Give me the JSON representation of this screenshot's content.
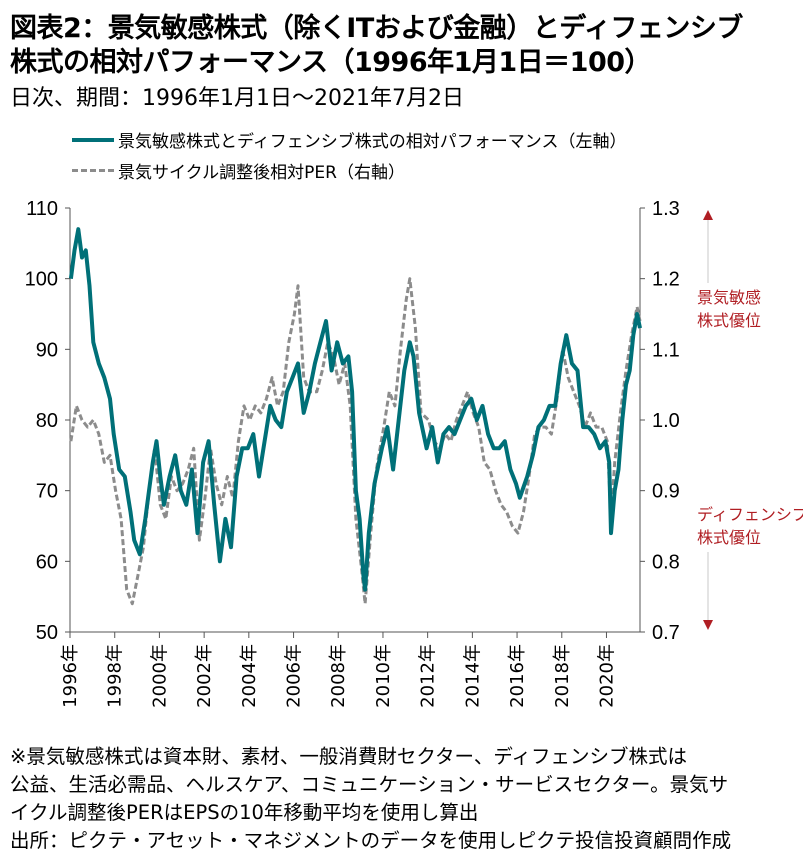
{
  "title_line1": "図表2：景気敏感株式（除くITおよび金融）とディフェンシブ",
  "title_line2": "株式の相対パフォーマンス（1996年1月1日＝100）",
  "subtitle": "日次、期間：1996年1月1日～2021年7月2日",
  "notes": [
    "※景気敏感株式は資本財、素材、一般消費財セクター、ディフェンシブ株式は",
    "公益、生活必需品、ヘルスケア、コミュニケーション・サービスセクター。景気サ",
    "イクル調整後PERはEPSの10年移動平均を使用し算出",
    "出所：ピクテ・アセット・マネジメントのデータを使用しピクテ投信投資顧問作成"
  ],
  "colors": {
    "relative": "#007078",
    "per": "#8c8c8c",
    "annotation": "#b01e23"
  },
  "chart_data": {
    "type": "line",
    "x_range": [
      "1996-01-01",
      "2021-07-02"
    ],
    "x_ticks": [
      "1996年",
      "1998年",
      "2000年",
      "2002年",
      "2004年",
      "2006年",
      "2008年",
      "2010年",
      "2012年",
      "2014年",
      "2016年",
      "2018年",
      "2020年"
    ],
    "left_axis": {
      "ylim": [
        50,
        110
      ],
      "ticks": [
        "50",
        "60",
        "70",
        "80",
        "90",
        "100",
        "110"
      ]
    },
    "right_axis": {
      "ylim": [
        0.7,
        1.3
      ],
      "ticks": [
        "0.7",
        "0.8",
        "0.9",
        "1.0",
        "1.1",
        "1.2",
        "1.3"
      ]
    },
    "annotation_top": [
      "景気敏感",
      "株式優位"
    ],
    "annotation_bottom": [
      "ディフェンシブ",
      "株式優位"
    ],
    "series": [
      {
        "name": "景気敏感株式とディフェンシブ株式の相対パフォーマンス（左軸）",
        "axis": "left",
        "style": "solid",
        "points": [
          [
            "1996-01",
            100
          ],
          [
            "1996-03",
            104
          ],
          [
            "1996-05",
            107
          ],
          [
            "1996-07",
            103
          ],
          [
            "1996-09",
            104
          ],
          [
            "1996-11",
            99
          ],
          [
            "1997-01",
            91
          ],
          [
            "1997-04",
            88
          ],
          [
            "1997-07",
            86
          ],
          [
            "1997-10",
            83
          ],
          [
            "1997-12",
            78
          ],
          [
            "1998-03",
            73
          ],
          [
            "1998-06",
            72
          ],
          [
            "1998-09",
            67
          ],
          [
            "1998-11",
            63
          ],
          [
            "1999-02",
            61
          ],
          [
            "1999-05",
            66
          ],
          [
            "1999-07",
            70
          ],
          [
            "1999-09",
            74
          ],
          [
            "1999-11",
            77
          ],
          [
            "2000-01",
            72
          ],
          [
            "2000-03",
            68
          ],
          [
            "2000-06",
            72
          ],
          [
            "2000-09",
            75
          ],
          [
            "2000-12",
            70
          ],
          [
            "2001-03",
            68
          ],
          [
            "2001-06",
            73
          ],
          [
            "2001-09",
            64
          ],
          [
            "2001-12",
            74
          ],
          [
            "2002-03",
            77
          ],
          [
            "2002-06",
            68
          ],
          [
            "2002-09",
            60
          ],
          [
            "2002-12",
            66
          ],
          [
            "2003-03",
            62
          ],
          [
            "2003-06",
            72
          ],
          [
            "2003-09",
            76
          ],
          [
            "2003-12",
            76
          ],
          [
            "2004-03",
            78
          ],
          [
            "2004-06",
            72
          ],
          [
            "2004-09",
            77
          ],
          [
            "2004-12",
            82
          ],
          [
            "2005-03",
            80
          ],
          [
            "2005-06",
            79
          ],
          [
            "2005-09",
            84
          ],
          [
            "2005-12",
            86
          ],
          [
            "2006-03",
            88
          ],
          [
            "2006-06",
            81
          ],
          [
            "2006-09",
            84
          ],
          [
            "2006-12",
            88
          ],
          [
            "2007-03",
            91
          ],
          [
            "2007-06",
            94
          ],
          [
            "2007-09",
            87
          ],
          [
            "2007-12",
            91
          ],
          [
            "2008-03",
            88
          ],
          [
            "2008-06",
            89
          ],
          [
            "2008-08",
            84
          ],
          [
            "2008-10",
            70
          ],
          [
            "2008-12",
            66
          ],
          [
            "2009-02",
            58
          ],
          [
            "2009-03",
            56
          ],
          [
            "2009-05",
            64
          ],
          [
            "2009-08",
            71
          ],
          [
            "2009-12",
            76
          ],
          [
            "2010-03",
            79
          ],
          [
            "2010-06",
            73
          ],
          [
            "2010-09",
            80
          ],
          [
            "2010-12",
            87
          ],
          [
            "2011-03",
            91
          ],
          [
            "2011-05",
            89
          ],
          [
            "2011-08",
            81
          ],
          [
            "2011-12",
            76
          ],
          [
            "2012-03",
            79
          ],
          [
            "2012-06",
            74
          ],
          [
            "2012-09",
            78
          ],
          [
            "2012-12",
            79
          ],
          [
            "2013-03",
            78
          ],
          [
            "2013-06",
            80
          ],
          [
            "2013-09",
            82
          ],
          [
            "2013-12",
            83
          ],
          [
            "2014-03",
            80
          ],
          [
            "2014-06",
            82
          ],
          [
            "2014-09",
            78
          ],
          [
            "2014-12",
            76
          ],
          [
            "2015-03",
            76
          ],
          [
            "2015-06",
            77
          ],
          [
            "2015-09",
            73
          ],
          [
            "2015-12",
            71
          ],
          [
            "2016-02",
            69
          ],
          [
            "2016-06",
            72
          ],
          [
            "2016-09",
            75
          ],
          [
            "2016-12",
            79
          ],
          [
            "2017-03",
            80
          ],
          [
            "2017-06",
            82
          ],
          [
            "2017-09",
            82
          ],
          [
            "2017-12",
            88
          ],
          [
            "2018-03",
            92
          ],
          [
            "2018-06",
            88
          ],
          [
            "2018-09",
            87
          ],
          [
            "2018-12",
            79
          ],
          [
            "2019-03",
            79
          ],
          [
            "2019-06",
            78
          ],
          [
            "2019-09",
            76
          ],
          [
            "2019-12",
            77
          ],
          [
            "2020-02",
            74
          ],
          [
            "2020-03",
            64
          ],
          [
            "2020-05",
            70
          ],
          [
            "2020-07",
            73
          ],
          [
            "2020-09",
            80
          ],
          [
            "2020-11",
            85
          ],
          [
            "2021-01",
            87
          ],
          [
            "2021-03",
            92
          ],
          [
            "2021-05",
            95
          ],
          [
            "2021-07-02",
            93
          ]
        ]
      },
      {
        "name": "景気サイクル調整後相対PER（右軸）",
        "axis": "right",
        "style": "dashed",
        "points": [
          [
            "1996-01",
            0.97
          ],
          [
            "1996-04",
            1.02
          ],
          [
            "1996-07",
            1.0
          ],
          [
            "1996-10",
            0.99
          ],
          [
            "1997-01",
            1.0
          ],
          [
            "1997-04",
            0.98
          ],
          [
            "1997-07",
            0.94
          ],
          [
            "1997-10",
            0.95
          ],
          [
            "1998-01",
            0.9
          ],
          [
            "1998-04",
            0.86
          ],
          [
            "1998-07",
            0.76
          ],
          [
            "1998-10",
            0.74
          ],
          [
            "1999-01",
            0.78
          ],
          [
            "1999-04",
            0.82
          ],
          [
            "1999-07",
            0.9
          ],
          [
            "1999-10",
            0.96
          ],
          [
            "2000-01",
            0.88
          ],
          [
            "2000-04",
            0.86
          ],
          [
            "2000-07",
            0.92
          ],
          [
            "2000-10",
            0.9
          ],
          [
            "2001-01",
            0.91
          ],
          [
            "2001-04",
            0.93
          ],
          [
            "2001-07",
            0.96
          ],
          [
            "2001-10",
            0.83
          ],
          [
            "2002-01",
            0.89
          ],
          [
            "2002-04",
            0.96
          ],
          [
            "2002-07",
            0.91
          ],
          [
            "2002-10",
            0.88
          ],
          [
            "2003-01",
            0.92
          ],
          [
            "2003-04",
            0.89
          ],
          [
            "2003-07",
            0.97
          ],
          [
            "2003-10",
            1.02
          ],
          [
            "2004-01",
            1.0
          ],
          [
            "2004-04",
            1.02
          ],
          [
            "2004-07",
            1.01
          ],
          [
            "2004-10",
            1.03
          ],
          [
            "2005-01",
            1.06
          ],
          [
            "2005-04",
            1.02
          ],
          [
            "2005-07",
            1.04
          ],
          [
            "2005-10",
            1.11
          ],
          [
            "2006-01",
            1.15
          ],
          [
            "2006-03",
            1.19
          ],
          [
            "2006-06",
            1.06
          ],
          [
            "2006-09",
            1.04
          ],
          [
            "2007-01",
            1.04
          ],
          [
            "2007-04",
            1.07
          ],
          [
            "2007-07",
            1.11
          ],
          [
            "2007-10",
            1.09
          ],
          [
            "2008-01",
            1.05
          ],
          [
            "2008-04",
            1.08
          ],
          [
            "2008-07",
            1.02
          ],
          [
            "2008-10",
            0.86
          ],
          [
            "2009-01",
            0.79
          ],
          [
            "2009-03",
            0.74
          ],
          [
            "2009-06",
            0.84
          ],
          [
            "2009-09",
            0.93
          ],
          [
            "2010-01",
            0.99
          ],
          [
            "2010-04",
            1.04
          ],
          [
            "2010-07",
            1.02
          ],
          [
            "2010-10",
            1.1
          ],
          [
            "2011-01",
            1.17
          ],
          [
            "2011-03",
            1.2
          ],
          [
            "2011-06",
            1.13
          ],
          [
            "2011-09",
            1.01
          ],
          [
            "2012-01",
            1.0
          ],
          [
            "2012-04",
            0.97
          ],
          [
            "2012-07",
            0.96
          ],
          [
            "2012-10",
            0.98
          ],
          [
            "2013-01",
            0.97
          ],
          [
            "2013-04",
            1.0
          ],
          [
            "2013-07",
            1.02
          ],
          [
            "2013-10",
            1.04
          ],
          [
            "2014-01",
            1.01
          ],
          [
            "2014-04",
            0.99
          ],
          [
            "2014-07",
            0.94
          ],
          [
            "2014-10",
            0.93
          ],
          [
            "2015-01",
            0.9
          ],
          [
            "2015-04",
            0.88
          ],
          [
            "2015-07",
            0.87
          ],
          [
            "2015-10",
            0.85
          ],
          [
            "2016-01",
            0.84
          ],
          [
            "2016-04",
            0.87
          ],
          [
            "2016-07",
            0.92
          ],
          [
            "2016-10",
            0.98
          ],
          [
            "2017-01",
            0.99
          ],
          [
            "2017-04",
            0.99
          ],
          [
            "2017-07",
            0.98
          ],
          [
            "2017-10",
            1.03
          ],
          [
            "2018-01",
            1.1
          ],
          [
            "2018-04",
            1.06
          ],
          [
            "2018-07",
            1.04
          ],
          [
            "2018-10",
            1.02
          ],
          [
            "2019-01",
            0.99
          ],
          [
            "2019-04",
            1.01
          ],
          [
            "2019-07",
            0.99
          ],
          [
            "2019-10",
            0.99
          ],
          [
            "2020-01",
            0.97
          ],
          [
            "2020-03",
            0.86
          ],
          [
            "2020-05",
            0.94
          ],
          [
            "2020-08",
            1.01
          ],
          [
            "2020-11",
            1.07
          ],
          [
            "2021-02",
            1.12
          ],
          [
            "2021-05",
            1.16
          ],
          [
            "2021-07-02",
            1.14
          ]
        ]
      }
    ]
  }
}
